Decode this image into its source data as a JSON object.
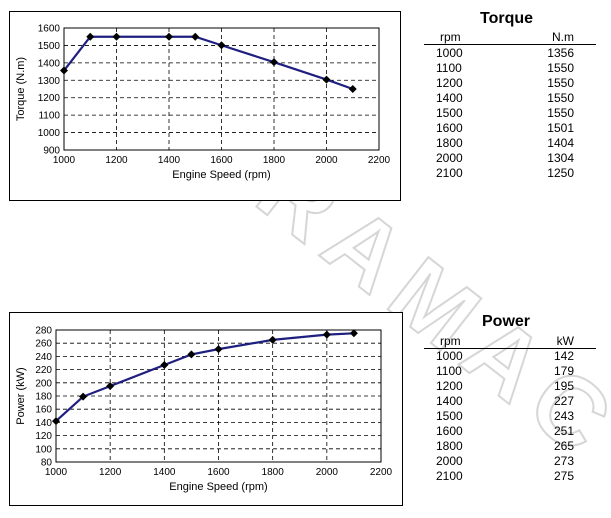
{
  "colors": {
    "line": "#1f1f80",
    "grid": "#000000",
    "marker": "#000000",
    "watermark": "#dcdcdc"
  },
  "watermark": {
    "text": "DURAMAC"
  },
  "chart_data": [
    {
      "type": "line",
      "xlabel": "Engine Speed (rpm)",
      "ylabel": "Torque (N.m)",
      "xlim": [
        1000,
        2200
      ],
      "ylim": [
        900,
        1600
      ],
      "xticks": [
        1000,
        1200,
        1400,
        1600,
        1800,
        2000,
        2200
      ],
      "yticks": [
        900,
        1000,
        1100,
        1200,
        1300,
        1400,
        1500,
        1600
      ],
      "grid": true,
      "series": [
        {
          "x": [
            1000,
            1100,
            1200,
            1400,
            1500,
            1600,
            1800,
            2000,
            2100
          ],
          "y": [
            1356,
            1550,
            1550,
            1550,
            1550,
            1501,
            1404,
            1304,
            1250
          ]
        }
      ]
    },
    {
      "type": "line",
      "xlabel": "Engine Speed (rpm)",
      "ylabel": "Power (kW)",
      "xlim": [
        1000,
        2200
      ],
      "ylim": [
        80,
        280
      ],
      "xticks": [
        1000,
        1200,
        1400,
        1600,
        1800,
        2000,
        2200
      ],
      "yticks": [
        80,
        100,
        120,
        140,
        160,
        180,
        200,
        220,
        240,
        260,
        280
      ],
      "grid": true,
      "series": [
        {
          "x": [
            1000,
            1100,
            1200,
            1400,
            1500,
            1600,
            1800,
            2000,
            2100
          ],
          "y": [
            142,
            179,
            195,
            227,
            243,
            251,
            265,
            273,
            275
          ]
        }
      ]
    },
    {
      "type": "table",
      "title": "Torque",
      "columns": [
        "rpm",
        "N.m"
      ],
      "rows": [
        [
          "1000",
          "1356"
        ],
        [
          "1100",
          "1550"
        ],
        [
          "1200",
          "1550"
        ],
        [
          "1400",
          "1550"
        ],
        [
          "1500",
          "1550"
        ],
        [
          "1600",
          "1501"
        ],
        [
          "1800",
          "1404"
        ],
        [
          "2000",
          "1304"
        ],
        [
          "2100",
          "1250"
        ]
      ]
    },
    {
      "type": "table",
      "title": "Power",
      "columns": [
        "rpm",
        "kW"
      ],
      "rows": [
        [
          "1000",
          "142"
        ],
        [
          "1100",
          "179"
        ],
        [
          "1200",
          "195"
        ],
        [
          "1400",
          "227"
        ],
        [
          "1500",
          "243"
        ],
        [
          "1600",
          "251"
        ],
        [
          "1800",
          "265"
        ],
        [
          "2000",
          "273"
        ],
        [
          "2100",
          "275"
        ]
      ]
    }
  ]
}
